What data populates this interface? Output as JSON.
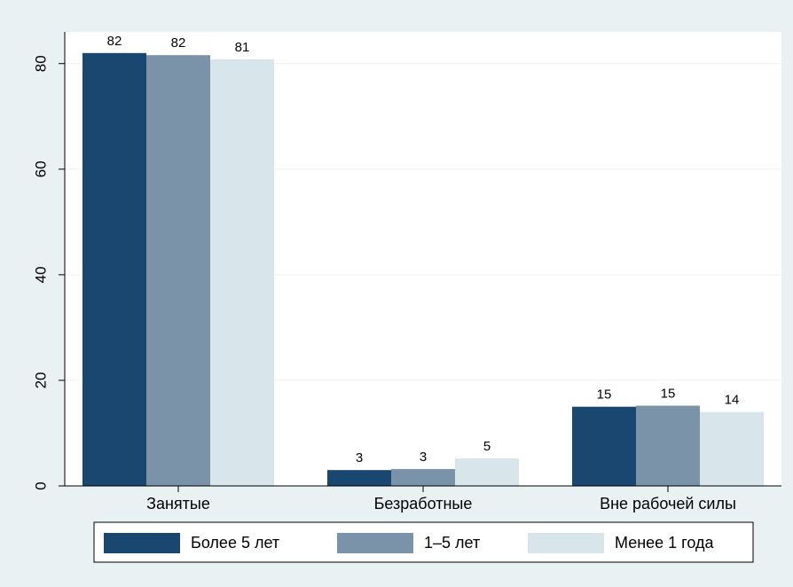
{
  "chart_data": {
    "type": "bar",
    "categories": [
      "Занятые",
      "Безработные",
      "Вне рабочей силы"
    ],
    "series": [
      {
        "name": "Более 5 лет",
        "values": [
          82,
          3,
          15
        ],
        "labels": [
          "82",
          "3",
          "15"
        ],
        "color": "#1a476f"
      },
      {
        "name": "1–5 лет",
        "values": [
          81.6,
          3.2,
          15.2
        ],
        "labels": [
          "82",
          "3",
          "15"
        ],
        "color": "#7a93a8"
      },
      {
        "name": "Менее 1 года",
        "values": [
          80.8,
          5.2,
          14
        ],
        "labels": [
          "81",
          "5",
          "14"
        ],
        "color": "#d8e5eb"
      }
    ],
    "yticks": [
      0,
      20,
      40,
      60,
      80
    ],
    "ylim": [
      0,
      86
    ],
    "grid": true,
    "legend": "bottom"
  }
}
